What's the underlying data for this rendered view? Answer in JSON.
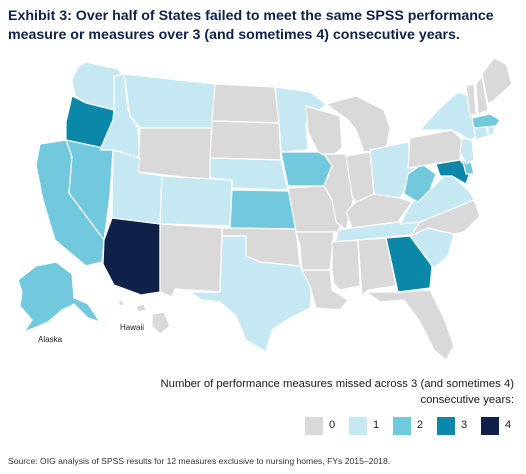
{
  "title": {
    "line1": "Exhibit 3: Over half of States failed to meet the same SPSS performance",
    "line2": "measure or measures over 3 (and sometimes 4) consecutive years."
  },
  "map": {
    "labels": {
      "alaska": "Alaska",
      "hawaii": "Hawaii"
    },
    "colors": {
      "0": "#d9d9d9",
      "1": "#c5e8f3",
      "2": "#72c8dd",
      "3": "#0b87a9",
      "4": "#0f2148"
    },
    "states": {
      "WA": 1,
      "OR": 3,
      "CA": 2,
      "NV": 2,
      "ID": 1,
      "MT": 1,
      "WY": 0,
      "UT": 1,
      "AZ": 4,
      "CO": 1,
      "NM": 0,
      "ND": 0,
      "SD": 0,
      "NE": 1,
      "KS": 2,
      "OK": 0,
      "TX": 1,
      "MN": 1,
      "IA": 2,
      "MO": 0,
      "AR": 0,
      "LA": 0,
      "WI": 0,
      "IL": 0,
      "MI": 0,
      "IN": 0,
      "OH": 1,
      "KY": 0,
      "TN": 1,
      "MS": 0,
      "AL": 0,
      "GA": 3,
      "FL": 0,
      "SC": 1,
      "NC": 0,
      "VA": 1,
      "WV": 2,
      "MD": 3,
      "DE": 2,
      "PA": 0,
      "NJ": 1,
      "NY": 1,
      "CT": 1,
      "RI": 1,
      "MA": 2,
      "VT": 0,
      "NH": 0,
      "ME": 0,
      "AK": 2,
      "HI": 0
    }
  },
  "legend": {
    "title_line1": "Number of performance measures missed across 3 (and sometimes 4)",
    "title_line2": "consecutive years:",
    "items": [
      {
        "label": "0",
        "level": "0"
      },
      {
        "label": "1",
        "level": "1"
      },
      {
        "label": "2",
        "level": "2"
      },
      {
        "label": "3",
        "level": "3"
      },
      {
        "label": "4",
        "level": "4"
      }
    ]
  },
  "source": "Source: OIG analysis of SPSS results for 12 measures exclusive to nursing homes, FYs 2015–2018."
}
